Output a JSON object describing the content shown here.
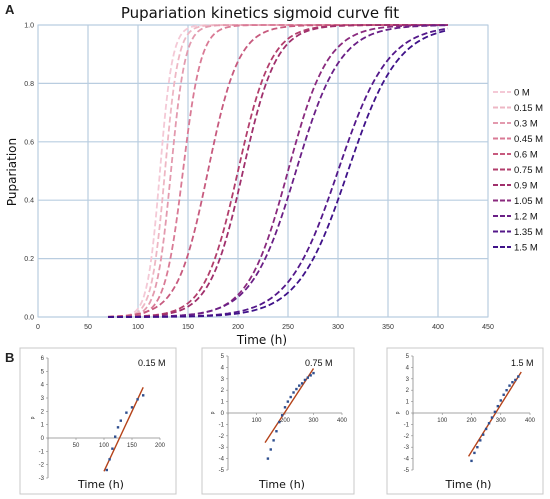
{
  "panel_labels": {
    "a": "A",
    "b": "B"
  },
  "chart_data": [
    {
      "type": "line",
      "title": "Pupariation kinetics sigmoid curve fit",
      "xlabel": "Time (h)",
      "ylabel": "Pupariation",
      "xlim": [
        0,
        450
      ],
      "ylim": [
        0,
        1.0
      ],
      "xticks": [
        0,
        50,
        100,
        150,
        200,
        250,
        300,
        350,
        400,
        450
      ],
      "yticks": [
        0.0,
        0.2,
        0.4,
        0.6,
        0.8,
        1.0
      ],
      "xtick_labels": [
        "0",
        "50",
        "100",
        "150",
        "200",
        "250",
        "300",
        "350",
        "400",
        "450"
      ],
      "ytick_labels": [
        "0.0",
        "0.2",
        "0.4",
        "0.6",
        "0.8",
        "1.0"
      ],
      "grid": true,
      "legend_position": "right",
      "line_style": "dashed",
      "x_range": [
        70,
        410
      ],
      "series": [
        {
          "name": "0 M",
          "color": "#f4c9d6",
          "midpoint": 122,
          "k": 0.16
        },
        {
          "name": "0.15 M",
          "color": "#eeb7c4",
          "midpoint": 127,
          "k": 0.15
        },
        {
          "name": "0.3 M",
          "color": "#e39aae",
          "midpoint": 133,
          "k": 0.14
        },
        {
          "name": "0.45 M",
          "color": "#d97a95",
          "midpoint": 145,
          "k": 0.11
        },
        {
          "name": "0.6 M",
          "color": "#c75a7e",
          "midpoint": 170,
          "k": 0.065
        },
        {
          "name": "0.75 M",
          "color": "#b23e6c",
          "midpoint": 200,
          "k": 0.06
        },
        {
          "name": "0.9 M",
          "color": "#a0306c",
          "midpoint": 205,
          "k": 0.06
        },
        {
          "name": "1.05 M",
          "color": "#8a2a7e",
          "midpoint": 250,
          "k": 0.05
        },
        {
          "name": "1.2 M",
          "color": "#6a1f86",
          "midpoint": 258,
          "k": 0.045
        },
        {
          "name": "1.35 M",
          "color": "#54188a",
          "midpoint": 300,
          "k": 0.04
        },
        {
          "name": "1.5 M",
          "color": "#3f1289",
          "midpoint": 310,
          "k": 0.04
        }
      ]
    },
    {
      "type": "scatter",
      "title": "0.15 M",
      "xlabel": "Time (h)",
      "ylabel": "p",
      "xlim": [
        0,
        200
      ],
      "ylim": [
        -3,
        6
      ],
      "xticks": [
        0,
        50,
        100,
        150,
        200
      ],
      "yticks": [
        -3,
        -2,
        -1,
        0,
        1,
        2,
        3,
        4,
        5,
        6
      ],
      "xtick_labels": [
        "0",
        "50",
        "100",
        "150",
        "200"
      ],
      "ytick_labels": [
        "-3",
        "-2",
        "-1",
        "0",
        "1",
        "2",
        "3",
        "4",
        "5",
        "6"
      ],
      "points_x": [
        105,
        110,
        115,
        120,
        125,
        130,
        140,
        150,
        160,
        170
      ],
      "points_y": [
        -2.4,
        -1.6,
        -0.8,
        0.1,
        0.8,
        1.3,
        1.9,
        2.3,
        2.9,
        3.2
      ],
      "fit_line": {
        "x": [
          100,
          170
        ],
        "y": [
          -2.5,
          3.8
        ]
      },
      "point_color": "#2f4f8f",
      "line_color": "#b5431a"
    },
    {
      "type": "scatter",
      "title": "0.75 M",
      "xlabel": "Time (h)",
      "ylabel": "p",
      "xlim": [
        0,
        400
      ],
      "ylim": [
        -5,
        5
      ],
      "xticks": [
        0,
        100,
        200,
        300,
        400
      ],
      "yticks": [
        -5,
        -4,
        -3,
        -2,
        -1,
        0,
        1,
        2,
        3,
        4,
        5
      ],
      "xtick_labels": [
        "0",
        "100",
        "200",
        "300",
        "400"
      ],
      "ytick_labels": [
        "-5",
        "-4",
        "-3",
        "-2",
        "-1",
        "0",
        "1",
        "2",
        "3",
        "4",
        "5"
      ],
      "points_x": [
        140,
        150,
        160,
        170,
        180,
        190,
        200,
        210,
        220,
        230,
        240,
        250,
        260,
        270,
        280,
        290,
        300
      ],
      "points_y": [
        -4.0,
        -3.2,
        -2.4,
        -1.6,
        -0.8,
        -0.2,
        0.5,
        1.0,
        1.4,
        1.8,
        2.1,
        2.4,
        2.6,
        2.9,
        3.1,
        3.3,
        3.5
      ],
      "fit_line": {
        "x": [
          130,
          300
        ],
        "y": [
          -2.6,
          3.9
        ]
      },
      "point_color": "#2f4f8f",
      "line_color": "#b5431a"
    },
    {
      "type": "scatter",
      "title": "1.5 M",
      "xlabel": "Time (h)",
      "ylabel": "p",
      "xlim": [
        0,
        400
      ],
      "ylim": [
        -5,
        5
      ],
      "xticks": [
        0,
        100,
        200,
        300,
        400
      ],
      "yticks": [
        -5,
        -4,
        -3,
        -2,
        -1,
        0,
        1,
        2,
        3,
        4,
        5
      ],
      "xtick_labels": [
        "0",
        "100",
        "200",
        "300",
        "400"
      ],
      "ytick_labels": [
        "-5",
        "-4",
        "-3",
        "-2",
        "-1",
        "0",
        "1",
        "2",
        "3",
        "4",
        "5"
      ],
      "points_x": [
        200,
        210,
        220,
        230,
        240,
        250,
        260,
        270,
        280,
        290,
        300,
        310,
        320,
        330,
        340,
        350,
        360
      ],
      "points_y": [
        -4.2,
        -3.5,
        -3.0,
        -2.4,
        -1.9,
        -1.4,
        -0.9,
        -0.4,
        0.1,
        0.6,
        1.1,
        1.6,
        2.0,
        2.4,
        2.7,
        2.9,
        3.2
      ],
      "fit_line": {
        "x": [
          190,
          370
        ],
        "y": [
          -3.8,
          3.6
        ]
      },
      "point_color": "#2f4f8f",
      "line_color": "#b5431a"
    }
  ]
}
